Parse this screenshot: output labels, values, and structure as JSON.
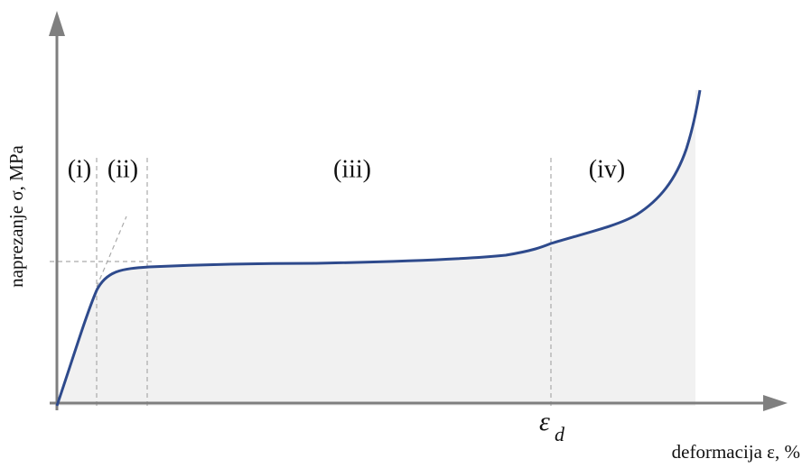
{
  "axes": {
    "y_label": "naprezanje σ, MPa",
    "x_label": "deformacija ε, %"
  },
  "regions": [
    "(i)",
    "(ii)",
    "(iii)",
    "(iv)"
  ],
  "marker": {
    "symbol": "ε",
    "subscript": "d"
  }
}
